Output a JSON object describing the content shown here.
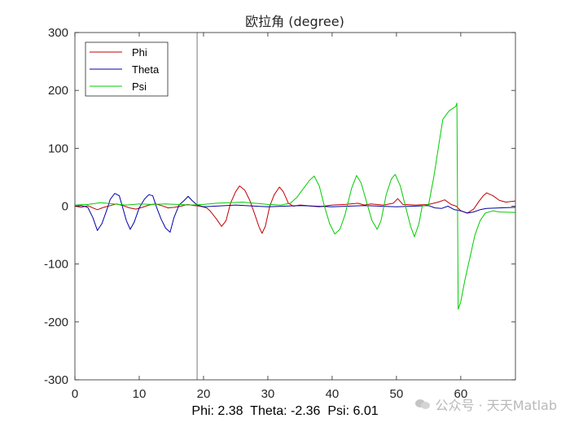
{
  "chart_data": {
    "type": "line",
    "title": "欧拉角 (degree)",
    "xlabel": "",
    "ylabel": "",
    "xlim": [
      0,
      68.5
    ],
    "ylim": [
      -300,
      300
    ],
    "xticks": [
      0,
      10,
      20,
      30,
      40,
      50,
      60
    ],
    "yticks": [
      -300,
      -200,
      -100,
      0,
      100,
      200,
      300
    ],
    "grid": false,
    "legend": "top-left",
    "cursor_x": 19,
    "series": [
      {
        "name": "Phi",
        "color": "#c00000",
        "points": [
          [
            0,
            0
          ],
          [
            1,
            -2
          ],
          [
            2,
            1
          ],
          [
            3,
            -4
          ],
          [
            3.5,
            -6
          ],
          [
            4.5,
            -2
          ],
          [
            5.5,
            1
          ],
          [
            6.5,
            4
          ],
          [
            7.5,
            1
          ],
          [
            8.5,
            -3
          ],
          [
            9.5,
            -5
          ],
          [
            10.5,
            -2
          ],
          [
            11.5,
            2
          ],
          [
            12.5,
            4
          ],
          [
            13.5,
            1
          ],
          [
            14.5,
            -3
          ],
          [
            15.5,
            -2
          ],
          [
            16.5,
            0
          ],
          [
            17.5,
            3
          ],
          [
            18.5,
            1
          ],
          [
            19.5,
            0
          ],
          [
            20.5,
            -3
          ],
          [
            21,
            -8
          ],
          [
            22,
            -22
          ],
          [
            22.8,
            -35
          ],
          [
            23.5,
            -25
          ],
          [
            24.2,
            5
          ],
          [
            25,
            25
          ],
          [
            25.6,
            35
          ],
          [
            26.4,
            28
          ],
          [
            27.2,
            10
          ],
          [
            28,
            -15
          ],
          [
            28.6,
            -35
          ],
          [
            29.1,
            -47
          ],
          [
            29.6,
            -35
          ],
          [
            30.3,
            0
          ],
          [
            31,
            20
          ],
          [
            31.8,
            33
          ],
          [
            32.4,
            25
          ],
          [
            33.2,
            5
          ],
          [
            34,
            0
          ],
          [
            35,
            2
          ],
          [
            36,
            1
          ],
          [
            38,
            -1
          ],
          [
            40,
            2
          ],
          [
            42,
            3
          ],
          [
            44,
            5
          ],
          [
            45,
            2
          ],
          [
            46,
            4
          ],
          [
            48,
            2
          ],
          [
            49.5,
            5
          ],
          [
            50.2,
            13
          ],
          [
            51,
            3
          ],
          [
            53,
            2
          ],
          [
            55,
            3
          ],
          [
            56.5,
            7
          ],
          [
            57.5,
            11
          ],
          [
            58.5,
            3
          ],
          [
            59.3,
            0
          ],
          [
            60,
            -8
          ],
          [
            61,
            -12
          ],
          [
            62,
            -5
          ],
          [
            62.8,
            8
          ],
          [
            63.5,
            18
          ],
          [
            64,
            23
          ],
          [
            65,
            18
          ],
          [
            66,
            10
          ],
          [
            67,
            7
          ],
          [
            68.5,
            9
          ]
        ]
      },
      {
        "name": "Theta",
        "color": "#0000a8",
        "points": [
          [
            0,
            0
          ],
          [
            1,
            1
          ],
          [
            2,
            -2
          ],
          [
            2.8,
            -20
          ],
          [
            3.5,
            -42
          ],
          [
            4.2,
            -30
          ],
          [
            5,
            -5
          ],
          [
            5.5,
            12
          ],
          [
            6.2,
            22
          ],
          [
            6.9,
            18
          ],
          [
            7.5,
            -5
          ],
          [
            8,
            -25
          ],
          [
            8.6,
            -40
          ],
          [
            9.2,
            -28
          ],
          [
            10,
            -3
          ],
          [
            10.8,
            12
          ],
          [
            11.5,
            20
          ],
          [
            12.1,
            18
          ],
          [
            12.7,
            -2
          ],
          [
            13.4,
            -22
          ],
          [
            14.1,
            -38
          ],
          [
            14.8,
            -45
          ],
          [
            15.4,
            -20
          ],
          [
            16.2,
            2
          ],
          [
            17,
            10
          ],
          [
            17.6,
            17
          ],
          [
            18.2,
            10
          ],
          [
            19,
            2
          ],
          [
            20,
            -1
          ],
          [
            25,
            2
          ],
          [
            30,
            -1
          ],
          [
            35,
            1
          ],
          [
            40,
            -1
          ],
          [
            45,
            1
          ],
          [
            50,
            -1
          ],
          [
            55,
            1
          ],
          [
            56,
            -3
          ],
          [
            57,
            -4
          ],
          [
            58,
            0
          ],
          [
            59,
            -6
          ],
          [
            60,
            -8
          ],
          [
            61,
            -12
          ],
          [
            62,
            -10
          ],
          [
            63,
            -6
          ],
          [
            64,
            -4
          ],
          [
            66,
            -3
          ],
          [
            68.5,
            -2
          ]
        ]
      },
      {
        "name": "Psi",
        "color": "#00cc00",
        "points": [
          [
            0,
            2
          ],
          [
            2,
            3
          ],
          [
            4,
            6
          ],
          [
            6,
            4
          ],
          [
            8,
            2
          ],
          [
            10,
            4
          ],
          [
            12,
            3
          ],
          [
            14,
            4
          ],
          [
            16,
            3
          ],
          [
            18,
            2
          ],
          [
            20,
            3
          ],
          [
            22,
            5
          ],
          [
            24,
            6
          ],
          [
            26,
            7
          ],
          [
            28,
            5
          ],
          [
            30,
            3
          ],
          [
            32,
            2
          ],
          [
            33.5,
            5
          ],
          [
            34.5,
            15
          ],
          [
            35.5,
            30
          ],
          [
            36.5,
            45
          ],
          [
            37.2,
            52
          ],
          [
            38,
            35
          ],
          [
            38.8,
            0
          ],
          [
            39.6,
            -30
          ],
          [
            40.4,
            -48
          ],
          [
            41.2,
            -40
          ],
          [
            42,
            -15
          ],
          [
            43,
            30
          ],
          [
            43.8,
            53
          ],
          [
            44.5,
            40
          ],
          [
            45.4,
            5
          ],
          [
            46.2,
            -25
          ],
          [
            47,
            -40
          ],
          [
            47.6,
            -25
          ],
          [
            48.4,
            20
          ],
          [
            49.2,
            47
          ],
          [
            49.8,
            55
          ],
          [
            50.6,
            35
          ],
          [
            51.4,
            0
          ],
          [
            52.2,
            -35
          ],
          [
            52.8,
            -53
          ],
          [
            53.5,
            -30
          ],
          [
            54,
            0
          ],
          [
            55,
            3
          ],
          [
            55.8,
            50
          ],
          [
            56.5,
            100
          ],
          [
            57.2,
            150
          ],
          [
            58.2,
            165
          ],
          [
            59.2,
            172
          ],
          [
            59.4,
            178
          ],
          [
            59.5,
            0
          ],
          [
            59.6,
            -178
          ],
          [
            60,
            -165
          ],
          [
            60.6,
            -130
          ],
          [
            61.4,
            -90
          ],
          [
            62.2,
            -50
          ],
          [
            63,
            -25
          ],
          [
            63.8,
            -12
          ],
          [
            65,
            -8
          ],
          [
            66,
            -10
          ],
          [
            68.5,
            -11
          ]
        ]
      }
    ],
    "readout": {
      "phi_label": "Phi:",
      "phi_value": "2.38",
      "theta_label": "Theta:",
      "theta_value": "-2.36",
      "psi_label": "Psi:",
      "psi_value": "6.01"
    }
  },
  "watermark": {
    "text": "公众号 · 天天Matlab",
    "icon": "wechat-icon"
  }
}
